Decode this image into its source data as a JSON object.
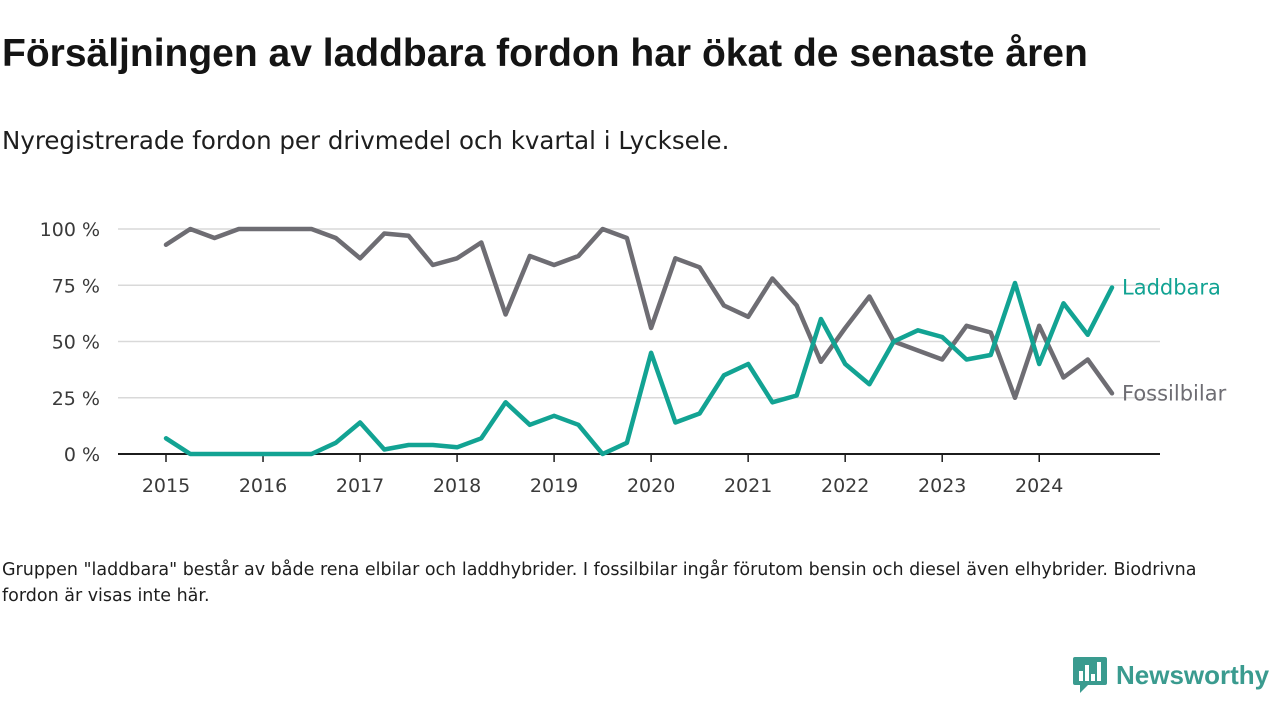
{
  "header": {
    "title": "Försäljningen av laddbara fordon har ökat de senaste åren",
    "subtitle": "Nyregistrerade fordon per drivmedel och kvartal i Lycksele."
  },
  "footer": {
    "note": "Gruppen \"laddbara\" består av både rena elbilar och laddhybrider. I fossilbilar ingår förutom bensin och diesel även elhybrider. Biodrivna fordon är visas inte här.",
    "brand": "Newsworthy",
    "brand_color": "#3a9b8f"
  },
  "chart_data": {
    "type": "line",
    "title": "Försäljningen av laddbara fordon har ökat de senaste åren",
    "subtitle": "Nyregistrerade fordon per drivmedel och kvartal i Lycksele.",
    "x_quarters": [
      "2015-Q1",
      "2015-Q2",
      "2015-Q3",
      "2015-Q4",
      "2016-Q1",
      "2016-Q2",
      "2016-Q3",
      "2016-Q4",
      "2017-Q1",
      "2017-Q2",
      "2017-Q3",
      "2017-Q4",
      "2018-Q1",
      "2018-Q2",
      "2018-Q3",
      "2018-Q4",
      "2019-Q1",
      "2019-Q2",
      "2019-Q3",
      "2019-Q4",
      "2020-Q1",
      "2020-Q2",
      "2020-Q3",
      "2020-Q4",
      "2021-Q1",
      "2021-Q2",
      "2021-Q3",
      "2021-Q4",
      "2022-Q1",
      "2022-Q2",
      "2022-Q3",
      "2022-Q4",
      "2023-Q1",
      "2023-Q2",
      "2023-Q3",
      "2023-Q4",
      "2024-Q1",
      "2024-Q2",
      "2024-Q3",
      "2024-Q4"
    ],
    "x_tick_labels": [
      "2015",
      "2016",
      "2017",
      "2018",
      "2019",
      "2020",
      "2021",
      "2022",
      "2023",
      "2024"
    ],
    "y_tick_labels": [
      "100 %",
      "75 %",
      "50 %",
      "25 %",
      "0 %"
    ],
    "y_ticks": [
      100,
      75,
      50,
      25,
      0
    ],
    "ylim": [
      0,
      100
    ],
    "xlim": [
      "2015-Q1",
      "2024-Q4"
    ],
    "ylabel": "",
    "xlabel": "",
    "grid": "horizontal",
    "legend": "direct labels at line ends",
    "series": [
      {
        "name": "Fossilbilar",
        "color": "#6e6d73",
        "values": [
          93,
          100,
          96,
          100,
          100,
          100,
          100,
          96,
          87,
          98,
          97,
          84,
          87,
          94,
          62,
          88,
          84,
          88,
          100,
          96,
          56,
          87,
          83,
          66,
          61,
          78,
          66,
          41,
          56,
          70,
          50,
          46,
          42,
          57,
          54,
          25,
          57,
          34,
          42,
          27
        ]
      },
      {
        "name": "Laddbara",
        "color": "#12a393",
        "values": [
          7,
          0,
          0,
          0,
          0,
          0,
          0,
          5,
          14,
          2,
          4,
          4,
          3,
          7,
          23,
          13,
          17,
          13,
          0,
          5,
          45,
          14,
          18,
          35,
          40,
          23,
          26,
          60,
          40,
          31,
          50,
          55,
          52,
          42,
          44,
          76,
          40,
          67,
          53,
          74
        ]
      }
    ]
  }
}
